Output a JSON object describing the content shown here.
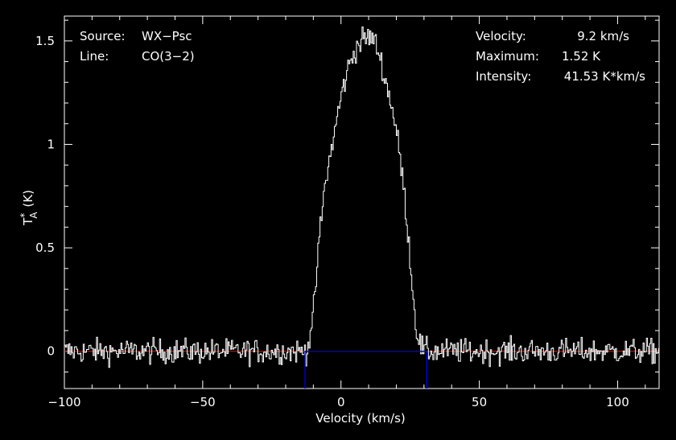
{
  "chart_data": {
    "type": "line",
    "title": "",
    "xlabel": "Velocity (km/s)",
    "ylabel_main": "T",
    "ylabel_sup": "*",
    "ylabel_sub": "A",
    "ylabel_unit": "(K)",
    "xlim": [
      -100,
      115
    ],
    "ylim": [
      -0.18,
      1.62
    ],
    "x_ticks": [
      -100,
      -50,
      0,
      50,
      100
    ],
    "x_tick_labels": [
      "−100",
      "−50",
      "0",
      "50",
      "100"
    ],
    "y_ticks": [
      0,
      0.5,
      1,
      1.5
    ],
    "y_tick_labels": [
      "0",
      "0.5",
      "1",
      "1.5"
    ],
    "grid": false,
    "colors": {
      "background": "#000000",
      "spectrum": "#ffffff",
      "window": "#0000cc",
      "baseline": "#ff0000"
    },
    "info_left": {
      "source_label": "Source:",
      "source_value": "WX−Psc",
      "line_label": "Line:",
      "line_value": "CO(3−2)"
    },
    "info_right": {
      "velocity_label": "Velocity:",
      "velocity_value": "9.2 km/s",
      "maximum_label": "Maximum:",
      "maximum_value": "1.52 K",
      "intensity_label": "Intensity:",
      "intensity_value": "41.53 K*km/s"
    },
    "window": {
      "v_start": -13,
      "v_end": 31,
      "level": 0
    },
    "baseline_level": 0,
    "noise_rms": 0.03,
    "channel_width_kms": 0.4,
    "profile": {
      "velocity": [
        -100,
        -13,
        -12,
        -10,
        -8,
        -6,
        -4,
        -2,
        0,
        2,
        4,
        6,
        8,
        10,
        12,
        14,
        16,
        18,
        20,
        22,
        24,
        25,
        26,
        27,
        28,
        29,
        30,
        115
      ],
      "temperature": [
        0,
        0,
        0.03,
        0.2,
        0.55,
        0.8,
        0.95,
        1.1,
        1.24,
        1.35,
        1.43,
        1.48,
        1.51,
        1.52,
        1.5,
        1.42,
        1.3,
        1.2,
        1.05,
        0.85,
        0.58,
        0.42,
        0.25,
        0.12,
        0.05,
        0.02,
        0,
        0
      ]
    }
  }
}
